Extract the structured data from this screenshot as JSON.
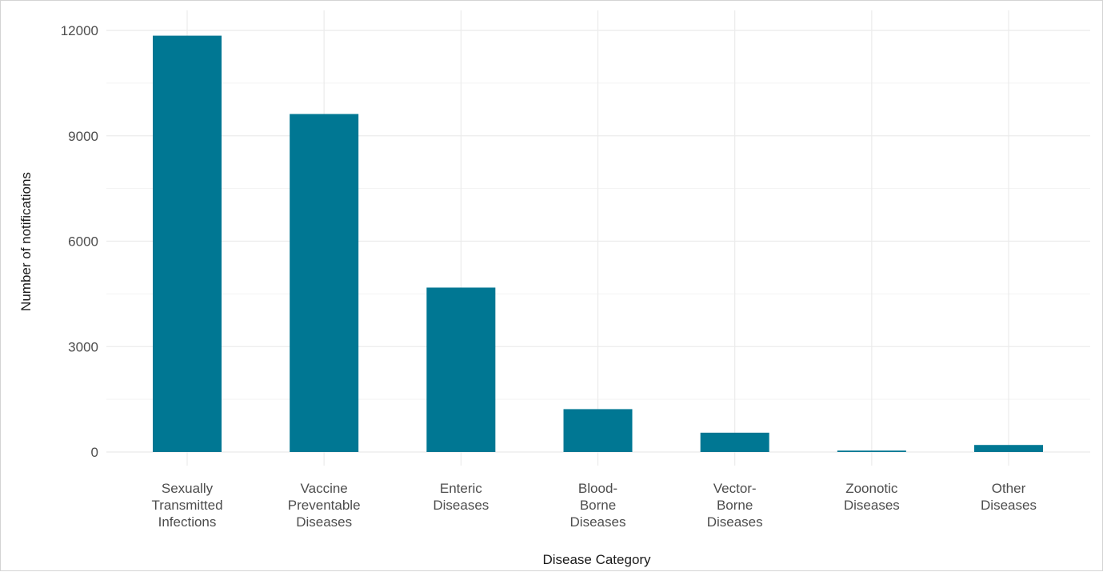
{
  "chart_data": {
    "type": "bar",
    "title": "",
    "xlabel": "Disease Category",
    "ylabel": "Number of notifications",
    "categories": [
      [
        "Sexually",
        "Transmitted",
        "Infections"
      ],
      [
        "Vaccine",
        "Preventable",
        "Diseases"
      ],
      [
        "Enteric",
        "Diseases"
      ],
      [
        "Blood-",
        "Borne",
        "Diseases"
      ],
      [
        "Vector-",
        "Borne",
        "Diseases"
      ],
      [
        "Zoonotic",
        "Diseases"
      ],
      [
        "Other",
        "Diseases"
      ]
    ],
    "values": [
      11850,
      9620,
      4680,
      1220,
      550,
      40,
      200
    ],
    "ylim": [
      0,
      12000
    ],
    "yticks": [
      0,
      3000,
      6000,
      9000,
      12000
    ],
    "ytick_labels": [
      "0",
      "3000",
      "6000",
      "9000",
      "12000"
    ],
    "grid": true,
    "legend": "none"
  },
  "colors": {
    "bar": "#007793",
    "grid_major": "#ebebeb",
    "grid_minor": "#f3f3f3"
  }
}
